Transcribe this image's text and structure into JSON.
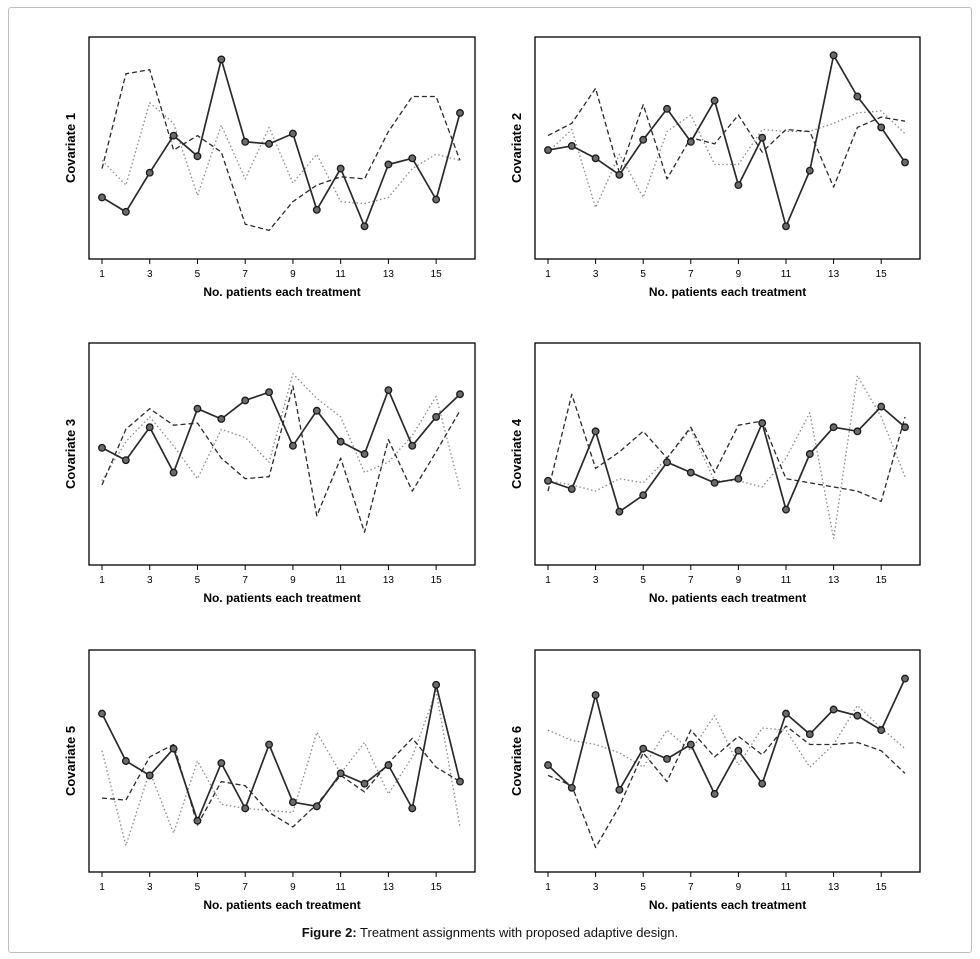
{
  "figure": {
    "caption_label": "Figure 2:",
    "caption_text": " Treatment assignments with proposed adaptive design."
  },
  "chart_data": [
    {
      "type": "line",
      "ylabel": "Covariate 1",
      "xlabel": "No. patients each treatment",
      "x": [
        1,
        2,
        3,
        4,
        5,
        6,
        7,
        8,
        9,
        10,
        11,
        12,
        13,
        14,
        15,
        16
      ],
      "xticks": [
        1,
        3,
        5,
        7,
        9,
        11,
        13,
        15
      ],
      "ylim": [
        0,
        1
      ],
      "series": [
        {
          "style": "solid-markers",
          "values": [
            0.26,
            0.19,
            0.38,
            0.56,
            0.46,
            0.93,
            0.53,
            0.52,
            0.57,
            0.2,
            0.4,
            0.12,
            0.42,
            0.45,
            0.25,
            0.67
          ]
        },
        {
          "style": "dashed",
          "values": [
            0.4,
            0.86,
            0.88,
            0.49,
            0.56,
            0.48,
            0.13,
            0.1,
            0.24,
            0.32,
            0.36,
            0.35,
            0.58,
            0.75,
            0.75,
            0.44
          ]
        },
        {
          "style": "dotted",
          "values": [
            0.44,
            0.32,
            0.72,
            0.62,
            0.27,
            0.61,
            0.35,
            0.6,
            0.33,
            0.47,
            0.24,
            0.23,
            0.26,
            0.4,
            0.47,
            0.44
          ]
        }
      ]
    },
    {
      "type": "line",
      "ylabel": "Covariate 2",
      "xlabel": "No. patients each treatment",
      "x": [
        1,
        2,
        3,
        4,
        5,
        6,
        7,
        8,
        9,
        10,
        11,
        12,
        13,
        14,
        15,
        16
      ],
      "xticks": [
        1,
        3,
        5,
        7,
        9,
        11,
        13,
        15
      ],
      "ylim": [
        0,
        1
      ],
      "series": [
        {
          "style": "solid-markers",
          "values": [
            0.49,
            0.51,
            0.45,
            0.37,
            0.54,
            0.69,
            0.53,
            0.73,
            0.32,
            0.55,
            0.12,
            0.39,
            0.95,
            0.75,
            0.6,
            0.43
          ]
        },
        {
          "style": "dashed",
          "values": [
            0.56,
            0.62,
            0.79,
            0.38,
            0.71,
            0.35,
            0.55,
            0.52,
            0.66,
            0.48,
            0.59,
            0.58,
            0.31,
            0.6,
            0.65,
            0.63
          ]
        },
        {
          "style": "dotted",
          "values": [
            0.48,
            0.59,
            0.21,
            0.47,
            0.26,
            0.58,
            0.66,
            0.42,
            0.42,
            0.59,
            0.58,
            0.58,
            0.62,
            0.67,
            0.68,
            0.57
          ]
        }
      ]
    },
    {
      "type": "line",
      "ylabel": "Covariate 3",
      "xlabel": "No. patients each treatment",
      "x": [
        1,
        2,
        3,
        4,
        5,
        6,
        7,
        8,
        9,
        10,
        11,
        12,
        13,
        14,
        15,
        16
      ],
      "xticks": [
        1,
        3,
        5,
        7,
        9,
        11,
        13,
        15
      ],
      "ylim": [
        0,
        1
      ],
      "series": [
        {
          "style": "solid-markers",
          "values": [
            0.53,
            0.47,
            0.63,
            0.41,
            0.72,
            0.67,
            0.76,
            0.8,
            0.54,
            0.71,
            0.56,
            0.5,
            0.81,
            0.54,
            0.68,
            0.79
          ]
        },
        {
          "style": "dashed",
          "values": [
            0.35,
            0.62,
            0.72,
            0.64,
            0.65,
            0.48,
            0.38,
            0.39,
            0.83,
            0.2,
            0.48,
            0.12,
            0.57,
            0.32,
            0.51,
            0.71
          ]
        },
        {
          "style": "dotted",
          "values": [
            0.37,
            0.56,
            0.68,
            0.54,
            0.38,
            0.62,
            0.58,
            0.46,
            0.89,
            0.77,
            0.68,
            0.41,
            0.46,
            0.59,
            0.78,
            0.33
          ]
        }
      ]
    },
    {
      "type": "line",
      "ylabel": "Covariate 4",
      "xlabel": "No. patients each treatment",
      "x": [
        1,
        2,
        3,
        4,
        5,
        6,
        7,
        8,
        9,
        10,
        11,
        12,
        13,
        14,
        15,
        16
      ],
      "xticks": [
        1,
        3,
        5,
        7,
        9,
        11,
        13,
        15
      ],
      "ylim": [
        0,
        1
      ],
      "series": [
        {
          "style": "solid-markers",
          "values": [
            0.37,
            0.33,
            0.61,
            0.22,
            0.3,
            0.46,
            0.41,
            0.36,
            0.38,
            0.65,
            0.23,
            0.5,
            0.63,
            0.61,
            0.73,
            0.63
          ]
        },
        {
          "style": "dashed",
          "values": [
            0.32,
            0.79,
            0.43,
            0.51,
            0.61,
            0.48,
            0.63,
            0.41,
            0.64,
            0.66,
            0.38,
            0.36,
            0.34,
            0.32,
            0.27,
            0.68
          ]
        },
        {
          "style": "dotted",
          "values": [
            0.37,
            0.35,
            0.32,
            0.38,
            0.36,
            0.48,
            0.62,
            0.37,
            0.37,
            0.34,
            0.48,
            0.7,
            0.09,
            0.88,
            0.68,
            0.39
          ]
        }
      ]
    },
    {
      "type": "line",
      "ylabel": "Covariate 5",
      "xlabel": "No. patients each treatment",
      "x": [
        1,
        2,
        3,
        4,
        5,
        6,
        7,
        8,
        9,
        10,
        11,
        12,
        13,
        14,
        15,
        16
      ],
      "xticks": [
        1,
        3,
        5,
        7,
        9,
        11,
        13,
        15
      ],
      "ylim": [
        0,
        1
      ],
      "series": [
        {
          "style": "solid-markers",
          "values": [
            0.73,
            0.5,
            0.43,
            0.56,
            0.21,
            0.49,
            0.27,
            0.58,
            0.3,
            0.28,
            0.44,
            0.39,
            0.48,
            0.27,
            0.87,
            0.4
          ]
        },
        {
          "style": "dashed",
          "values": [
            0.32,
            0.31,
            0.52,
            0.58,
            0.19,
            0.4,
            0.38,
            0.25,
            0.18,
            0.29,
            0.43,
            0.35,
            0.49,
            0.61,
            0.47,
            0.4
          ]
        },
        {
          "style": "dotted",
          "values": [
            0.55,
            0.09,
            0.45,
            0.15,
            0.5,
            0.29,
            0.27,
            0.26,
            0.25,
            0.64,
            0.44,
            0.59,
            0.34,
            0.52,
            0.84,
            0.18
          ]
        }
      ]
    },
    {
      "type": "line",
      "ylabel": "Covariate 6",
      "xlabel": "No. patients each treatment",
      "x": [
        1,
        2,
        3,
        4,
        5,
        6,
        7,
        8,
        9,
        10,
        11,
        12,
        13,
        14,
        15,
        16
      ],
      "xticks": [
        1,
        3,
        5,
        7,
        9,
        11,
        13,
        15
      ],
      "ylim": [
        0,
        1
      ],
      "series": [
        {
          "style": "solid-markers",
          "values": [
            0.48,
            0.37,
            0.82,
            0.36,
            0.56,
            0.51,
            0.58,
            0.34,
            0.55,
            0.39,
            0.73,
            0.63,
            0.75,
            0.72,
            0.65,
            0.9
          ]
        },
        {
          "style": "dashed",
          "values": [
            0.43,
            0.38,
            0.08,
            0.28,
            0.54,
            0.4,
            0.65,
            0.52,
            0.62,
            0.53,
            0.67,
            0.58,
            0.58,
            0.59,
            0.55,
            0.44
          ]
        },
        {
          "style": "dotted",
          "values": [
            0.65,
            0.6,
            0.58,
            0.54,
            0.47,
            0.65,
            0.55,
            0.72,
            0.48,
            0.66,
            0.65,
            0.47,
            0.58,
            0.77,
            0.66,
            0.56
          ]
        }
      ]
    }
  ]
}
